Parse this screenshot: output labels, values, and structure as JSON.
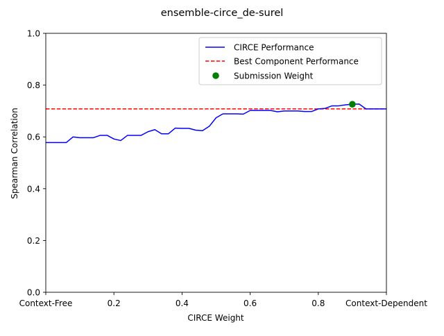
{
  "chart_data": {
    "type": "line",
    "title": "ensemble-circe_de-surel",
    "xlabel": "CIRCE Weight",
    "ylabel": "Spearman Correlation",
    "xlim": [
      0,
      1
    ],
    "ylim": [
      0,
      1
    ],
    "x_ticks": [
      {
        "value": 0,
        "label": "Context-Free"
      },
      {
        "value": 0.2,
        "label": "0.2"
      },
      {
        "value": 0.4,
        "label": "0.4"
      },
      {
        "value": 0.6,
        "label": "0.6"
      },
      {
        "value": 0.8,
        "label": "0.8"
      },
      {
        "value": 1,
        "label": "Context-Dependent"
      }
    ],
    "y_ticks": [
      {
        "value": 0,
        "label": "0.0"
      },
      {
        "value": 0.2,
        "label": "0.2"
      },
      {
        "value": 0.4,
        "label": "0.4"
      },
      {
        "value": 0.6,
        "label": "0.6"
      },
      {
        "value": 0.8,
        "label": "0.8"
      },
      {
        "value": 1,
        "label": "1.0"
      }
    ],
    "grid": false,
    "legend_position": "top-right",
    "series": [
      {
        "name": "CIRCE Performance",
        "style": "solid-line",
        "color": "#0000ff",
        "x": [
          0.0,
          0.02,
          0.04,
          0.06,
          0.08,
          0.1,
          0.12,
          0.14,
          0.16,
          0.18,
          0.2,
          0.22,
          0.24,
          0.26,
          0.28,
          0.3,
          0.32,
          0.34,
          0.36,
          0.38,
          0.4,
          0.42,
          0.44,
          0.46,
          0.48,
          0.5,
          0.52,
          0.54,
          0.56,
          0.58,
          0.6,
          0.62,
          0.64,
          0.66,
          0.68,
          0.7,
          0.72,
          0.74,
          0.76,
          0.78,
          0.8,
          0.82,
          0.84,
          0.86,
          0.88,
          0.9,
          0.92,
          0.94,
          0.96,
          0.98,
          1.0
        ],
        "y": [
          0.578,
          0.578,
          0.578,
          0.578,
          0.6,
          0.597,
          0.597,
          0.597,
          0.606,
          0.606,
          0.592,
          0.586,
          0.606,
          0.606,
          0.606,
          0.62,
          0.628,
          0.612,
          0.612,
          0.634,
          0.633,
          0.633,
          0.626,
          0.624,
          0.641,
          0.674,
          0.689,
          0.689,
          0.689,
          0.688,
          0.702,
          0.702,
          0.702,
          0.702,
          0.697,
          0.7,
          0.7,
          0.7,
          0.698,
          0.698,
          0.708,
          0.71,
          0.72,
          0.72,
          0.724,
          0.726,
          0.727,
          0.708,
          0.708,
          0.708,
          0.708
        ]
      },
      {
        "name": "Best Component Performance",
        "style": "dashed-line",
        "color": "#ff0000",
        "y_constant": 0.708
      },
      {
        "name": "Submission Weight",
        "style": "point",
        "color": "#008000",
        "x": [
          0.9
        ],
        "y": [
          0.726
        ]
      }
    ]
  }
}
